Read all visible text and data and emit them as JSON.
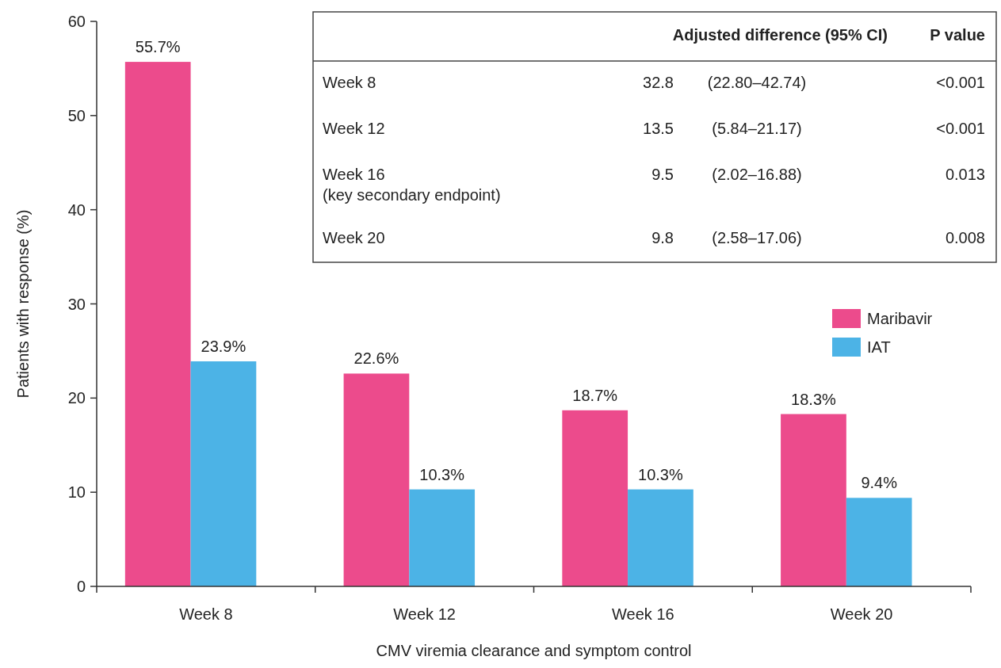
{
  "chart_data": {
    "type": "bar",
    "xlabel": "CMV viremia clearance and symptom control",
    "ylabel": "Patients with response (%)",
    "categories": [
      "Week 8",
      "Week 12",
      "Week 16",
      "Week 20"
    ],
    "series": [
      {
        "name": "Maribavir",
        "color": "#ec4b8c",
        "values": [
          55.7,
          22.6,
          18.7,
          18.3
        ],
        "value_labels": [
          "55.7%",
          "22.6%",
          "18.7%",
          "18.3%"
        ]
      },
      {
        "name": "IAT",
        "color": "#4cb3e6",
        "values": [
          23.9,
          10.3,
          10.3,
          9.4
        ],
        "value_labels": [
          "23.9%",
          "10.3%",
          "10.3%",
          "9.4%"
        ]
      }
    ],
    "ylim": [
      0,
      60
    ],
    "yticks": [
      0,
      10,
      20,
      30,
      40,
      50,
      60
    ],
    "grid": false,
    "legend": "right",
    "annotations": [
      "Adjusted difference (95% CI)",
      "P value",
      "Week 8",
      "32.8",
      "(22.80–42.74)",
      "<0.001",
      "Week 12",
      "13.5",
      "(5.84–21.17)",
      "<0.001",
      "Week 16\n(key secondary endpoint)",
      "9.5",
      "(2.02–16.88)",
      "0.013",
      "Week 20",
      "9.8",
      "(2.58–17.06)",
      "0.008"
    ]
  }
}
